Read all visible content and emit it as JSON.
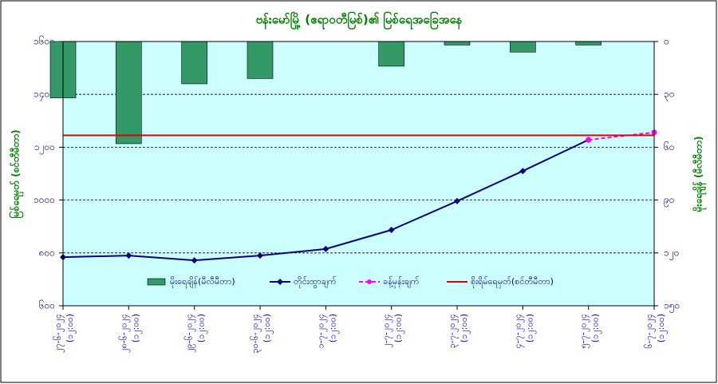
{
  "chart_data": {
    "type": "bar-line",
    "title": "ဗန်းမော်မြို့ (ဧရာဝတီမြစ်)၏ မြစ်ရေအခြေအနေ",
    "y_label": "မြစ်ရေမှတ် (စင်တီမီတာ)",
    "y2_label": "မိုးရေချိန် (မီလီမီတာ)",
    "categories": [
      "၂၇-၆-၂၀၂၄",
      "၂၈-၆-၂၀၂၄",
      "၂၉-၆-၂၀၂၄",
      "၃၀-၆-၂၀၂၄",
      "၁-၇-၂၀၂၄",
      "၂-၇-၂၀၂၄",
      "၃-၇-၂၀၂၄",
      "၄-၇-၂၀၂၄",
      "၅-၇-၂၀၂၄",
      "၆-၇-၂၀၂၄"
    ],
    "category_times": [
      "(၁၂:၀၀)",
      "(၁၂:၀၀)",
      "(၁၂:၀၀)",
      "(၁၂:၀၀)",
      "(၁၂:၀၀)",
      "(၁၂:၀၀)",
      "(၁၂:၀၀)",
      "(၁၂:၀၀)",
      "(၁၂:၀၀)",
      "(၁၂:၀၀)"
    ],
    "ylim": [
      600,
      1600
    ],
    "yticks": [
      {
        "value": 600,
        "label": "၆၀၀"
      },
      {
        "value": 800,
        "label": "၈၀၀"
      },
      {
        "value": 1000,
        "label": "၁၀၀၀"
      },
      {
        "value": 1200,
        "label": "၁၂၀၀"
      },
      {
        "value": 1400,
        "label": "၁၄၀၀"
      },
      {
        "value": 1600,
        "label": "၁၆၀၀"
      }
    ],
    "y2lim": [
      0,
      150
    ],
    "y2_reversed": true,
    "y2ticks": [
      {
        "value": 0,
        "label": "၀"
      },
      {
        "value": 30,
        "label": "၃၀"
      },
      {
        "value": 60,
        "label": "၆၀"
      },
      {
        "value": 90,
        "label": "၉၀"
      },
      {
        "value": 120,
        "label": "၁၂၀"
      },
      {
        "value": 150,
        "label": "၁၅၀"
      }
    ],
    "grid": true,
    "series": [
      {
        "name": "မိုးရေချိန်(မီလီမီတာ)",
        "kind": "bar",
        "axis": "y2",
        "color": "#339966",
        "values": [
          32,
          58,
          24,
          21,
          null,
          14,
          2,
          6,
          2,
          null
        ]
      },
      {
        "name": "တိုင်းထွာချက်",
        "kind": "line",
        "color": "#000080",
        "values": [
          784,
          790,
          772,
          790,
          815,
          887,
          996,
          1110,
          1228,
          null
        ]
      },
      {
        "name": "ခန့်မှန်းချက်",
        "kind": "dashed",
        "color": "#ff00ff",
        "values": [
          null,
          null,
          null,
          null,
          null,
          null,
          null,
          null,
          1228,
          1256
        ]
      }
    ],
    "threshold": {
      "name": "စိုးရိမ်ရေမှတ်(စင်တီမီတာ)",
      "value": 1245,
      "color": "#e00000"
    }
  }
}
